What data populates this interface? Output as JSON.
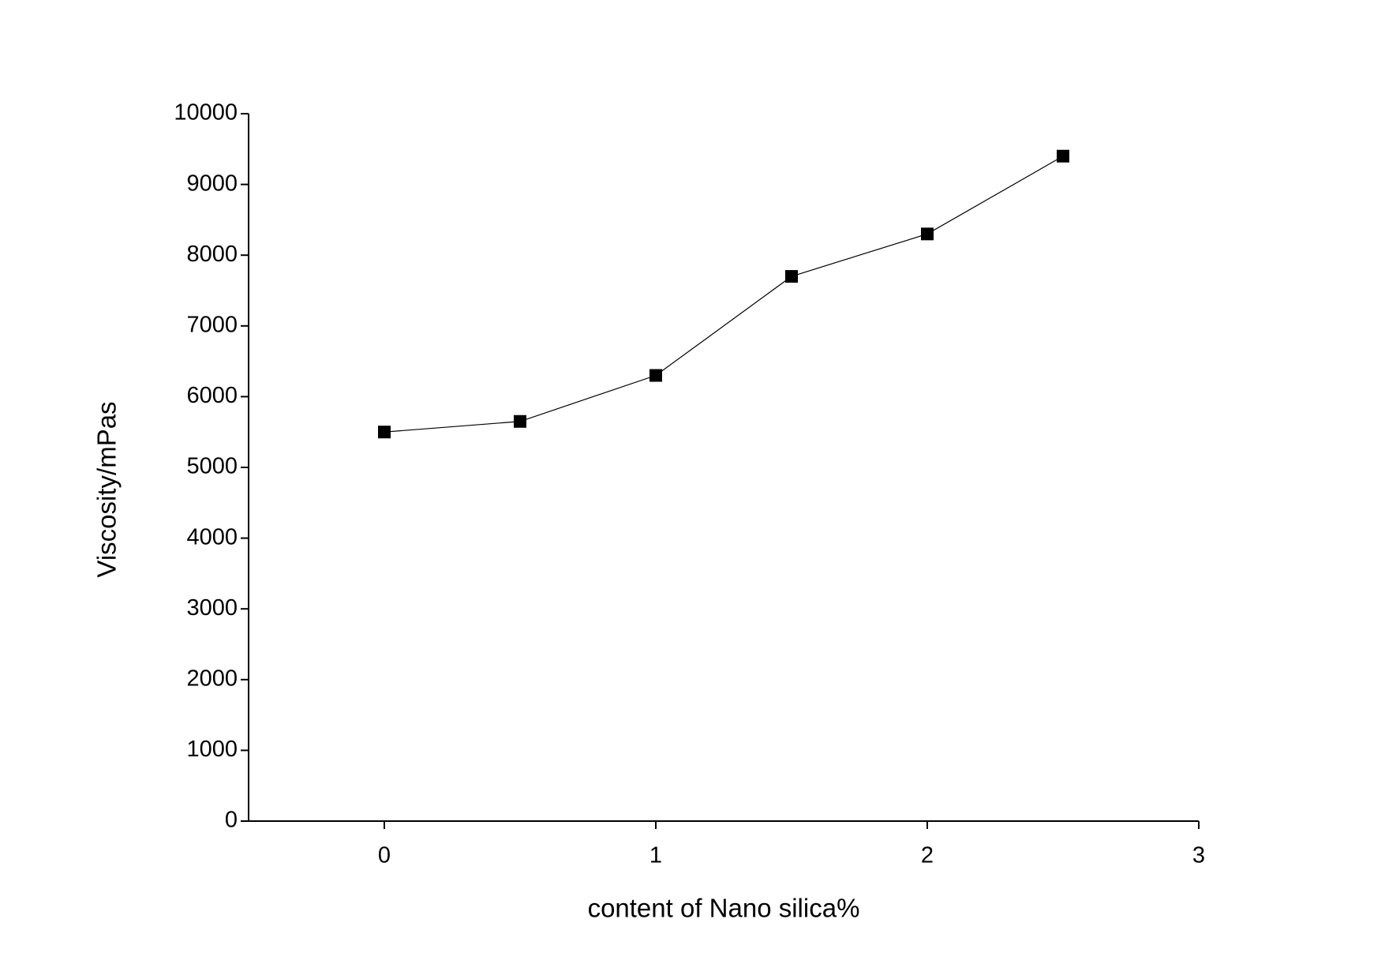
{
  "chart_data": {
    "type": "line",
    "xlabel": "content of Nano silica%",
    "ylabel": "Viscosity/mPas",
    "x": [
      0,
      0.5,
      1,
      1.5,
      2,
      2.5
    ],
    "series": [
      {
        "color": "#000000",
        "marker": "square",
        "values": [
          5500,
          5650,
          6300,
          7700,
          8300,
          9400
        ]
      }
    ],
    "xlim": [
      -0.5,
      3
    ],
    "xticks": [
      0,
      1,
      2,
      3
    ],
    "ylim": [
      0,
      10000
    ],
    "yticks": [
      0,
      1000,
      2000,
      3000,
      4000,
      5000,
      6000,
      7000,
      8000,
      9000,
      10000
    ],
    "grid": false
  }
}
